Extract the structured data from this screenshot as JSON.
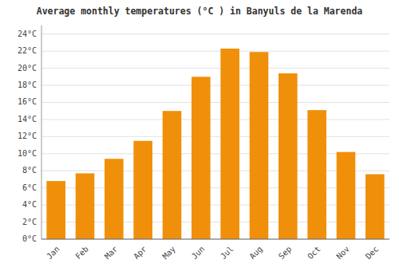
{
  "chart_data": {
    "type": "bar",
    "title": "Average monthly temperatures (°C ) in Banyuls de la Marenda",
    "categories": [
      "Jan",
      "Feb",
      "Mar",
      "Apr",
      "May",
      "Jun",
      "Jul",
      "Aug",
      "Sep",
      "Oct",
      "Nov",
      "Dec"
    ],
    "values": [
      6.8,
      7.7,
      9.4,
      11.5,
      15.0,
      19.0,
      22.3,
      21.9,
      19.4,
      15.1,
      10.2,
      7.6
    ],
    "color": "#F0900A",
    "ylim": [
      0,
      25
    ],
    "yticks": [
      {
        "value": 0,
        "label": "0°C"
      },
      {
        "value": 2,
        "label": "2°C"
      },
      {
        "value": 4,
        "label": "4°C"
      },
      {
        "value": 6,
        "label": "6°C"
      },
      {
        "value": 8,
        "label": "8°C"
      },
      {
        "value": 10,
        "label": "10°C"
      },
      {
        "value": 12,
        "label": "12°C"
      },
      {
        "value": 14,
        "label": "14°C"
      },
      {
        "value": 16,
        "label": "16°C"
      },
      {
        "value": 18,
        "label": "18°C"
      },
      {
        "value": 20,
        "label": "20°C"
      },
      {
        "value": 22,
        "label": "22°C"
      },
      {
        "value": 24,
        "label": "24°C"
      }
    ],
    "grid": true
  }
}
